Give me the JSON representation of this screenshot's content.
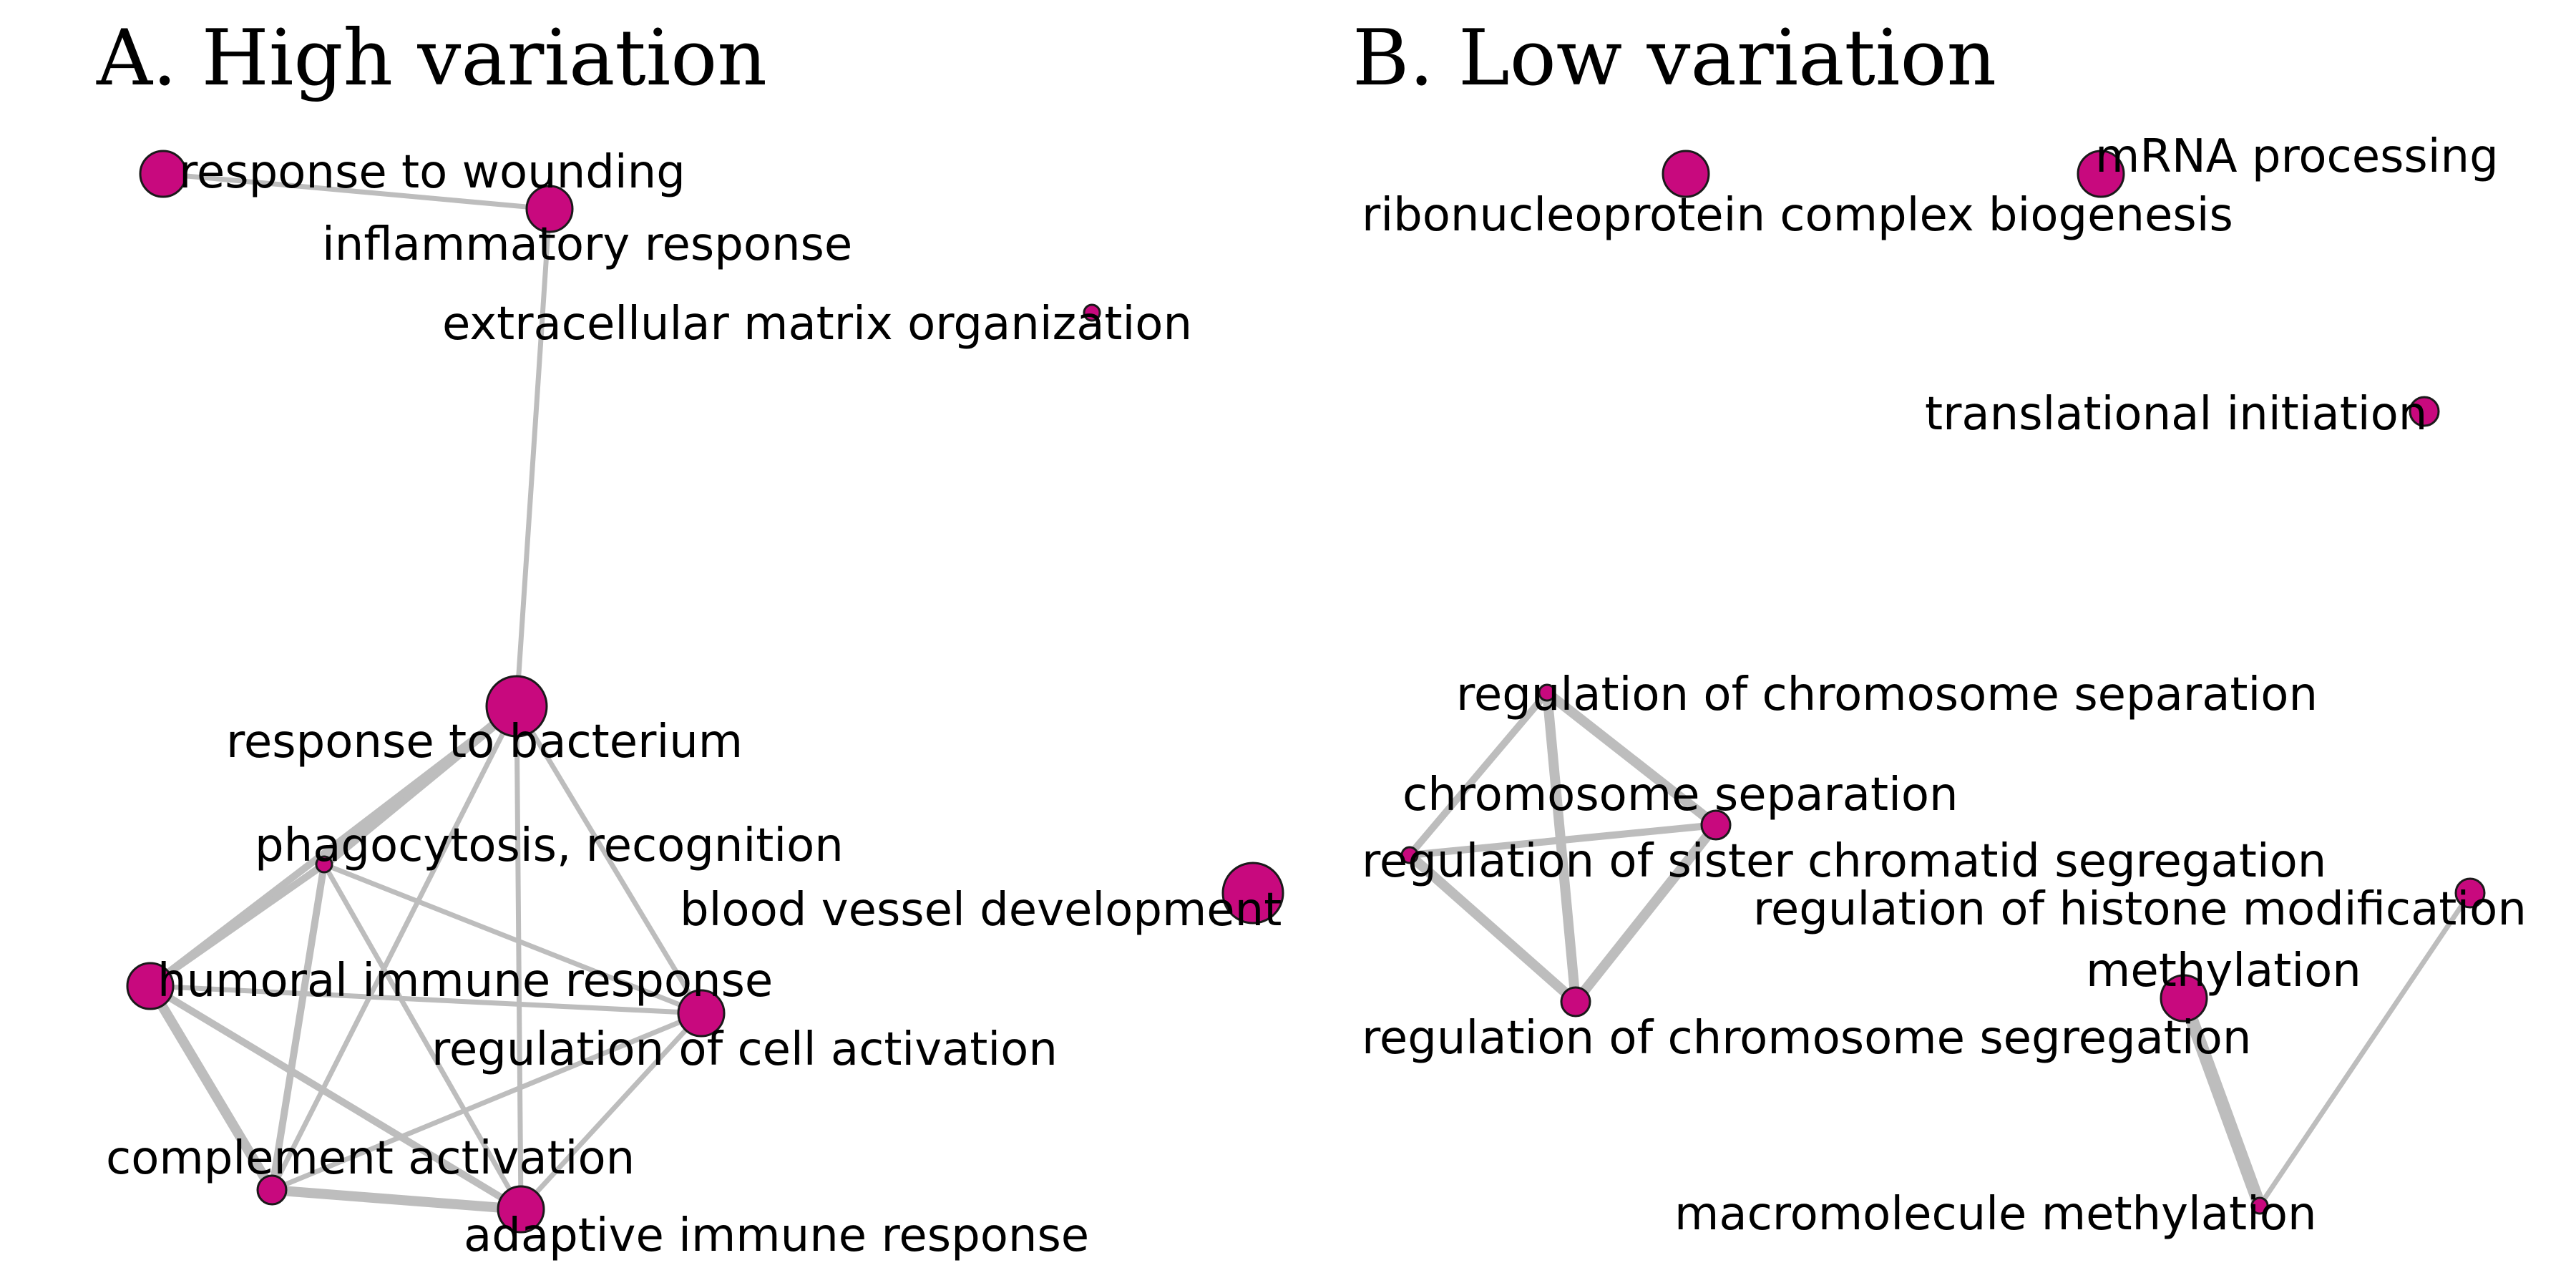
{
  "figure": {
    "node_color": "#c8097e",
    "edge_color": "#bdbdbd",
    "panels": [
      {
        "title": "A. High variation",
        "nodes": [
          {
            "id": "wound",
            "label": "response to wounding",
            "size": 3
          },
          {
            "id": "inflam",
            "label": "inflammatory response",
            "size": 3
          },
          {
            "id": "ecm",
            "label": "extracellular matrix organization",
            "size": 1
          },
          {
            "id": "bact",
            "label": "response to bacterium",
            "size": 4
          },
          {
            "id": "phago",
            "label": "phagocytosis, recognition",
            "size": 1
          },
          {
            "id": "blood",
            "label": "blood vessel development",
            "size": 4
          },
          {
            "id": "humoral",
            "label": "humoral immune response",
            "size": 3
          },
          {
            "id": "regcell",
            "label": "regulation of cell activation",
            "size": 3
          },
          {
            "id": "complement",
            "label": "complement activation",
            "size": 2
          },
          {
            "id": "adaptive",
            "label": "adaptive immune response",
            "size": 3
          }
        ],
        "edges": [
          {
            "source": "wound",
            "target": "inflam",
            "weight": 2
          },
          {
            "source": "inflam",
            "target": "bact",
            "weight": 2
          },
          {
            "source": "bact",
            "target": "phago",
            "weight": 4
          },
          {
            "source": "bact",
            "target": "humoral",
            "weight": 3
          },
          {
            "source": "bact",
            "target": "regcell",
            "weight": 2
          },
          {
            "source": "bact",
            "target": "complement",
            "weight": 2
          },
          {
            "source": "bact",
            "target": "adaptive",
            "weight": 2
          },
          {
            "source": "phago",
            "target": "humoral",
            "weight": 3
          },
          {
            "source": "phago",
            "target": "complement",
            "weight": 3
          },
          {
            "source": "phago",
            "target": "regcell",
            "weight": 2
          },
          {
            "source": "phago",
            "target": "adaptive",
            "weight": 2
          },
          {
            "source": "humoral",
            "target": "regcell",
            "weight": 2
          },
          {
            "source": "humoral",
            "target": "complement",
            "weight": 4
          },
          {
            "source": "humoral",
            "target": "adaptive",
            "weight": 3
          },
          {
            "source": "regcell",
            "target": "complement",
            "weight": 2
          },
          {
            "source": "regcell",
            "target": "adaptive",
            "weight": 2
          },
          {
            "source": "complement",
            "target": "adaptive",
            "weight": 4
          }
        ]
      },
      {
        "title": "B. Low variation",
        "nodes": [
          {
            "id": "ribo",
            "label": "ribonucleoprotein complex biogenesis",
            "size": 3
          },
          {
            "id": "mrna",
            "label": "mRNA processing",
            "size": 3
          },
          {
            "id": "transl",
            "label": "translational initiation",
            "size": 2
          },
          {
            "id": "regchromsep",
            "label": "regulation of chromosome separation",
            "size": 1
          },
          {
            "id": "chromsep",
            "label": "chromosome separation",
            "size": 2
          },
          {
            "id": "regsister",
            "label": "regulation of sister chromatid segregation",
            "size": 1
          },
          {
            "id": "reghist",
            "label": "regulation of histone modification",
            "size": 2
          },
          {
            "id": "methyl",
            "label": "methylation",
            "size": 3
          },
          {
            "id": "regchromseg",
            "label": "regulation of chromosome segregation",
            "size": 2
          },
          {
            "id": "macro",
            "label": "macromolecule methylation",
            "size": 1
          }
        ],
        "edges": [
          {
            "source": "regchromsep",
            "target": "regsister",
            "weight": 3
          },
          {
            "source": "regchromsep",
            "target": "chromsep",
            "weight": 4
          },
          {
            "source": "regchromsep",
            "target": "regchromseg",
            "weight": 4
          },
          {
            "source": "regsister",
            "target": "chromsep",
            "weight": 3
          },
          {
            "source": "regsister",
            "target": "regchromseg",
            "weight": 4
          },
          {
            "source": "chromsep",
            "target": "regchromseg",
            "weight": 4
          },
          {
            "source": "methyl",
            "target": "macro",
            "weight": 5
          },
          {
            "source": "reghist",
            "target": "macro",
            "weight": 2
          }
        ]
      }
    ]
  }
}
